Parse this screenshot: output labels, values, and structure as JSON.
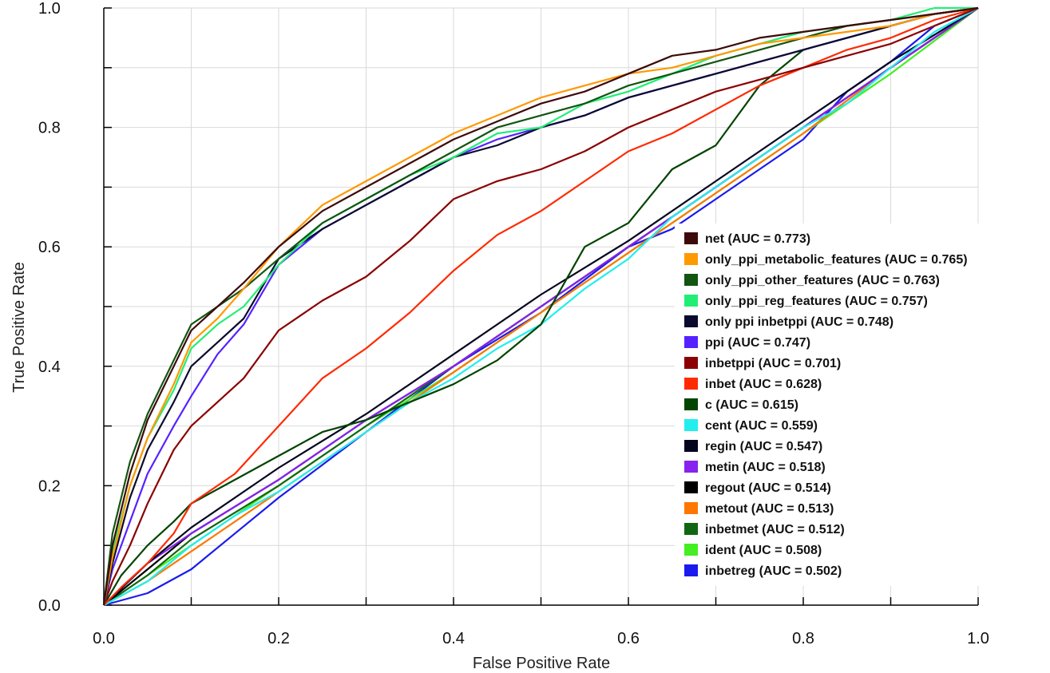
{
  "chart_data": {
    "type": "line",
    "title": "",
    "xlabel": "False Positive Rate",
    "ylabel": "True Positive Rate",
    "xlim": [
      0.0,
      1.0
    ],
    "ylim": [
      0.0,
      1.0
    ],
    "x_ticks": [
      "0.0",
      "0.2",
      "0.4",
      "0.6",
      "0.8",
      "1.0"
    ],
    "y_ticks": [
      "0.0",
      "0.2",
      "0.4",
      "0.6",
      "0.8",
      "1.0"
    ],
    "grid": true,
    "legend_position": "lower-right",
    "series": [
      {
        "name": "net (AUC = 0.773)",
        "color": "#3d0a0a",
        "x": [
          0,
          0.01,
          0.03,
          0.05,
          0.08,
          0.1,
          0.13,
          0.16,
          0.2,
          0.25,
          0.3,
          0.35,
          0.4,
          0.45,
          0.5,
          0.55,
          0.6,
          0.65,
          0.7,
          0.75,
          0.8,
          0.85,
          0.9,
          0.95,
          1.0
        ],
        "y": [
          0,
          0.1,
          0.22,
          0.31,
          0.4,
          0.46,
          0.5,
          0.54,
          0.6,
          0.66,
          0.7,
          0.74,
          0.78,
          0.81,
          0.84,
          0.86,
          0.89,
          0.92,
          0.93,
          0.95,
          0.96,
          0.97,
          0.98,
          0.99,
          1.0
        ]
      },
      {
        "name": "only_ppi_metabolic_features (AUC = 0.765)",
        "color": "#ff9900",
        "x": [
          0,
          0.01,
          0.03,
          0.05,
          0.08,
          0.1,
          0.13,
          0.16,
          0.2,
          0.25,
          0.3,
          0.35,
          0.4,
          0.45,
          0.5,
          0.55,
          0.6,
          0.65,
          0.7,
          0.75,
          0.8,
          0.85,
          0.9,
          0.95,
          1.0
        ],
        "y": [
          0,
          0.08,
          0.2,
          0.28,
          0.37,
          0.44,
          0.48,
          0.53,
          0.6,
          0.67,
          0.71,
          0.75,
          0.79,
          0.82,
          0.85,
          0.87,
          0.89,
          0.9,
          0.92,
          0.94,
          0.95,
          0.96,
          0.97,
          0.99,
          1.0
        ]
      },
      {
        "name": "only_ppi_other_features (AUC = 0.763)",
        "color": "#115511",
        "x": [
          0,
          0.01,
          0.03,
          0.05,
          0.08,
          0.1,
          0.13,
          0.16,
          0.2,
          0.25,
          0.3,
          0.35,
          0.4,
          0.45,
          0.5,
          0.55,
          0.6,
          0.65,
          0.7,
          0.75,
          0.8,
          0.85,
          0.9,
          0.95,
          1.0
        ],
        "y": [
          0,
          0.12,
          0.24,
          0.32,
          0.41,
          0.47,
          0.5,
          0.53,
          0.58,
          0.64,
          0.68,
          0.72,
          0.76,
          0.8,
          0.82,
          0.84,
          0.87,
          0.89,
          0.91,
          0.93,
          0.95,
          0.97,
          0.98,
          0.99,
          1.0
        ]
      },
      {
        "name": "only_ppi_reg_features (AUC = 0.757)",
        "color": "#22ee77",
        "x": [
          0,
          0.01,
          0.03,
          0.05,
          0.08,
          0.1,
          0.13,
          0.16,
          0.2,
          0.25,
          0.3,
          0.35,
          0.4,
          0.45,
          0.5,
          0.55,
          0.6,
          0.65,
          0.7,
          0.75,
          0.8,
          0.85,
          0.9,
          0.95,
          1.0
        ],
        "y": [
          0,
          0.09,
          0.2,
          0.28,
          0.36,
          0.43,
          0.47,
          0.5,
          0.57,
          0.64,
          0.68,
          0.72,
          0.75,
          0.79,
          0.8,
          0.84,
          0.86,
          0.89,
          0.92,
          0.94,
          0.96,
          0.97,
          0.98,
          1.0,
          1.0
        ]
      },
      {
        "name": "only ppi inbetppi (AUC = 0.748)",
        "color": "#0a0a2e",
        "x": [
          0,
          0.01,
          0.03,
          0.05,
          0.08,
          0.1,
          0.13,
          0.16,
          0.2,
          0.25,
          0.3,
          0.35,
          0.4,
          0.45,
          0.5,
          0.55,
          0.6,
          0.65,
          0.7,
          0.75,
          0.8,
          0.85,
          0.9,
          0.95,
          1.0
        ],
        "y": [
          0,
          0.07,
          0.18,
          0.26,
          0.34,
          0.4,
          0.44,
          0.48,
          0.58,
          0.63,
          0.67,
          0.71,
          0.75,
          0.77,
          0.8,
          0.82,
          0.85,
          0.87,
          0.89,
          0.91,
          0.93,
          0.95,
          0.97,
          0.99,
          1.0
        ]
      },
      {
        "name": "ppi (AUC = 0.747)",
        "color": "#5522ff",
        "x": [
          0,
          0.01,
          0.03,
          0.05,
          0.08,
          0.1,
          0.13,
          0.16,
          0.2,
          0.25,
          0.3,
          0.35,
          0.4,
          0.45,
          0.5,
          0.55,
          0.6,
          0.65,
          0.7,
          0.75,
          0.8,
          0.85,
          0.9,
          0.95,
          1.0
        ],
        "y": [
          0,
          0.06,
          0.14,
          0.22,
          0.3,
          0.35,
          0.42,
          0.47,
          0.57,
          0.63,
          0.67,
          0.71,
          0.75,
          0.78,
          0.8,
          0.82,
          0.85,
          0.87,
          0.89,
          0.91,
          0.93,
          0.95,
          0.97,
          0.99,
          1.0
        ]
      },
      {
        "name": "inbetppi (AUC = 0.701)",
        "color": "#8b0000",
        "x": [
          0,
          0.01,
          0.03,
          0.05,
          0.08,
          0.1,
          0.13,
          0.16,
          0.2,
          0.25,
          0.3,
          0.35,
          0.4,
          0.45,
          0.5,
          0.55,
          0.6,
          0.65,
          0.7,
          0.75,
          0.8,
          0.85,
          0.9,
          0.95,
          1.0
        ],
        "y": [
          0,
          0.04,
          0.1,
          0.17,
          0.26,
          0.3,
          0.34,
          0.38,
          0.46,
          0.51,
          0.55,
          0.61,
          0.68,
          0.71,
          0.73,
          0.76,
          0.8,
          0.83,
          0.86,
          0.88,
          0.9,
          0.92,
          0.94,
          0.97,
          1.0
        ]
      },
      {
        "name": "inbet (AUC = 0.628)",
        "color": "#ff2a00",
        "x": [
          0,
          0.02,
          0.05,
          0.08,
          0.1,
          0.15,
          0.2,
          0.25,
          0.3,
          0.35,
          0.4,
          0.45,
          0.5,
          0.55,
          0.6,
          0.65,
          0.7,
          0.75,
          0.8,
          0.85,
          0.9,
          0.95,
          1.0
        ],
        "y": [
          0,
          0.03,
          0.07,
          0.12,
          0.17,
          0.22,
          0.3,
          0.38,
          0.43,
          0.49,
          0.56,
          0.62,
          0.66,
          0.71,
          0.76,
          0.79,
          0.83,
          0.87,
          0.9,
          0.93,
          0.95,
          0.98,
          1.0
        ]
      },
      {
        "name": "c (AUC = 0.615)",
        "color": "#004400",
        "x": [
          0,
          0.02,
          0.05,
          0.08,
          0.1,
          0.15,
          0.2,
          0.25,
          0.3,
          0.35,
          0.4,
          0.45,
          0.5,
          0.55,
          0.6,
          0.65,
          0.7,
          0.75,
          0.8,
          0.85,
          0.9,
          0.95,
          1.0
        ],
        "y": [
          0,
          0.05,
          0.1,
          0.14,
          0.17,
          0.21,
          0.25,
          0.29,
          0.31,
          0.34,
          0.37,
          0.41,
          0.47,
          0.6,
          0.64,
          0.73,
          0.77,
          0.87,
          0.93,
          0.95,
          0.97,
          0.99,
          1.0
        ]
      },
      {
        "name": "cent (AUC = 0.559)",
        "color": "#22eeee",
        "x": [
          0,
          0.05,
          0.1,
          0.15,
          0.2,
          0.25,
          0.3,
          0.35,
          0.4,
          0.45,
          0.5,
          0.55,
          0.6,
          0.65,
          0.7,
          0.75,
          0.8,
          0.85,
          0.9,
          0.95,
          1.0
        ],
        "y": [
          0,
          0.04,
          0.1,
          0.15,
          0.19,
          0.24,
          0.29,
          0.34,
          0.38,
          0.43,
          0.47,
          0.53,
          0.58,
          0.65,
          0.7,
          0.75,
          0.8,
          0.84,
          0.9,
          0.96,
          1.0
        ]
      },
      {
        "name": "regin (AUC = 0.547)",
        "color": "#050520",
        "x": [
          0,
          0.05,
          0.1,
          0.2,
          0.3,
          0.4,
          0.5,
          0.6,
          0.7,
          0.8,
          0.9,
          1.0
        ],
        "y": [
          0,
          0.07,
          0.13,
          0.23,
          0.32,
          0.42,
          0.52,
          0.61,
          0.71,
          0.81,
          0.91,
          1.0
        ]
      },
      {
        "name": "metin (AUC = 0.518)",
        "color": "#8822ee",
        "x": [
          0,
          0.05,
          0.1,
          0.2,
          0.3,
          0.4,
          0.5,
          0.6,
          0.7,
          0.8,
          0.9,
          1.0
        ],
        "y": [
          0,
          0.07,
          0.12,
          0.21,
          0.31,
          0.4,
          0.5,
          0.6,
          0.7,
          0.8,
          0.9,
          1.0
        ]
      },
      {
        "name": "regout (AUC = 0.514)",
        "color": "#000000",
        "x": [
          0,
          0.05,
          0.1,
          0.2,
          0.3,
          0.4,
          0.5,
          0.6,
          0.7,
          0.8,
          0.9,
          1.0
        ],
        "y": [
          0,
          0.06,
          0.12,
          0.21,
          0.31,
          0.4,
          0.5,
          0.6,
          0.7,
          0.8,
          0.9,
          1.0
        ]
      },
      {
        "name": "metout (AUC = 0.513)",
        "color": "#ff7700",
        "x": [
          0,
          0.05,
          0.1,
          0.2,
          0.3,
          0.4,
          0.5,
          0.6,
          0.7,
          0.8,
          0.9,
          1.0
        ],
        "y": [
          0,
          0.04,
          0.09,
          0.19,
          0.29,
          0.39,
          0.49,
          0.59,
          0.69,
          0.79,
          0.9,
          1.0
        ]
      },
      {
        "name": "inbetmet (AUC = 0.512)",
        "color": "#116611",
        "x": [
          0,
          0.05,
          0.1,
          0.2,
          0.3,
          0.4,
          0.5,
          0.6,
          0.7,
          0.8,
          0.9,
          1.0
        ],
        "y": [
          0,
          0.05,
          0.11,
          0.2,
          0.3,
          0.4,
          0.5,
          0.6,
          0.7,
          0.8,
          0.9,
          1.0
        ]
      },
      {
        "name": "ident (AUC = 0.508)",
        "color": "#44ee22",
        "x": [
          0,
          0.05,
          0.1,
          0.2,
          0.3,
          0.4,
          0.5,
          0.6,
          0.7,
          0.8,
          0.9,
          1.0
        ],
        "y": [
          0,
          0.05,
          0.1,
          0.2,
          0.3,
          0.39,
          0.49,
          0.59,
          0.69,
          0.79,
          0.89,
          1.0
        ]
      },
      {
        "name": "inbetreg (AUC = 0.502)",
        "color": "#1a1aee",
        "x": [
          0,
          0.05,
          0.1,
          0.15,
          0.2,
          0.3,
          0.4,
          0.5,
          0.6,
          0.65,
          0.7,
          0.8,
          0.85,
          0.9,
          0.95,
          1.0
        ],
        "y": [
          0,
          0.02,
          0.06,
          0.12,
          0.18,
          0.29,
          0.4,
          0.49,
          0.6,
          0.63,
          0.68,
          0.78,
          0.86,
          0.91,
          0.97,
          1.0
        ]
      }
    ]
  }
}
